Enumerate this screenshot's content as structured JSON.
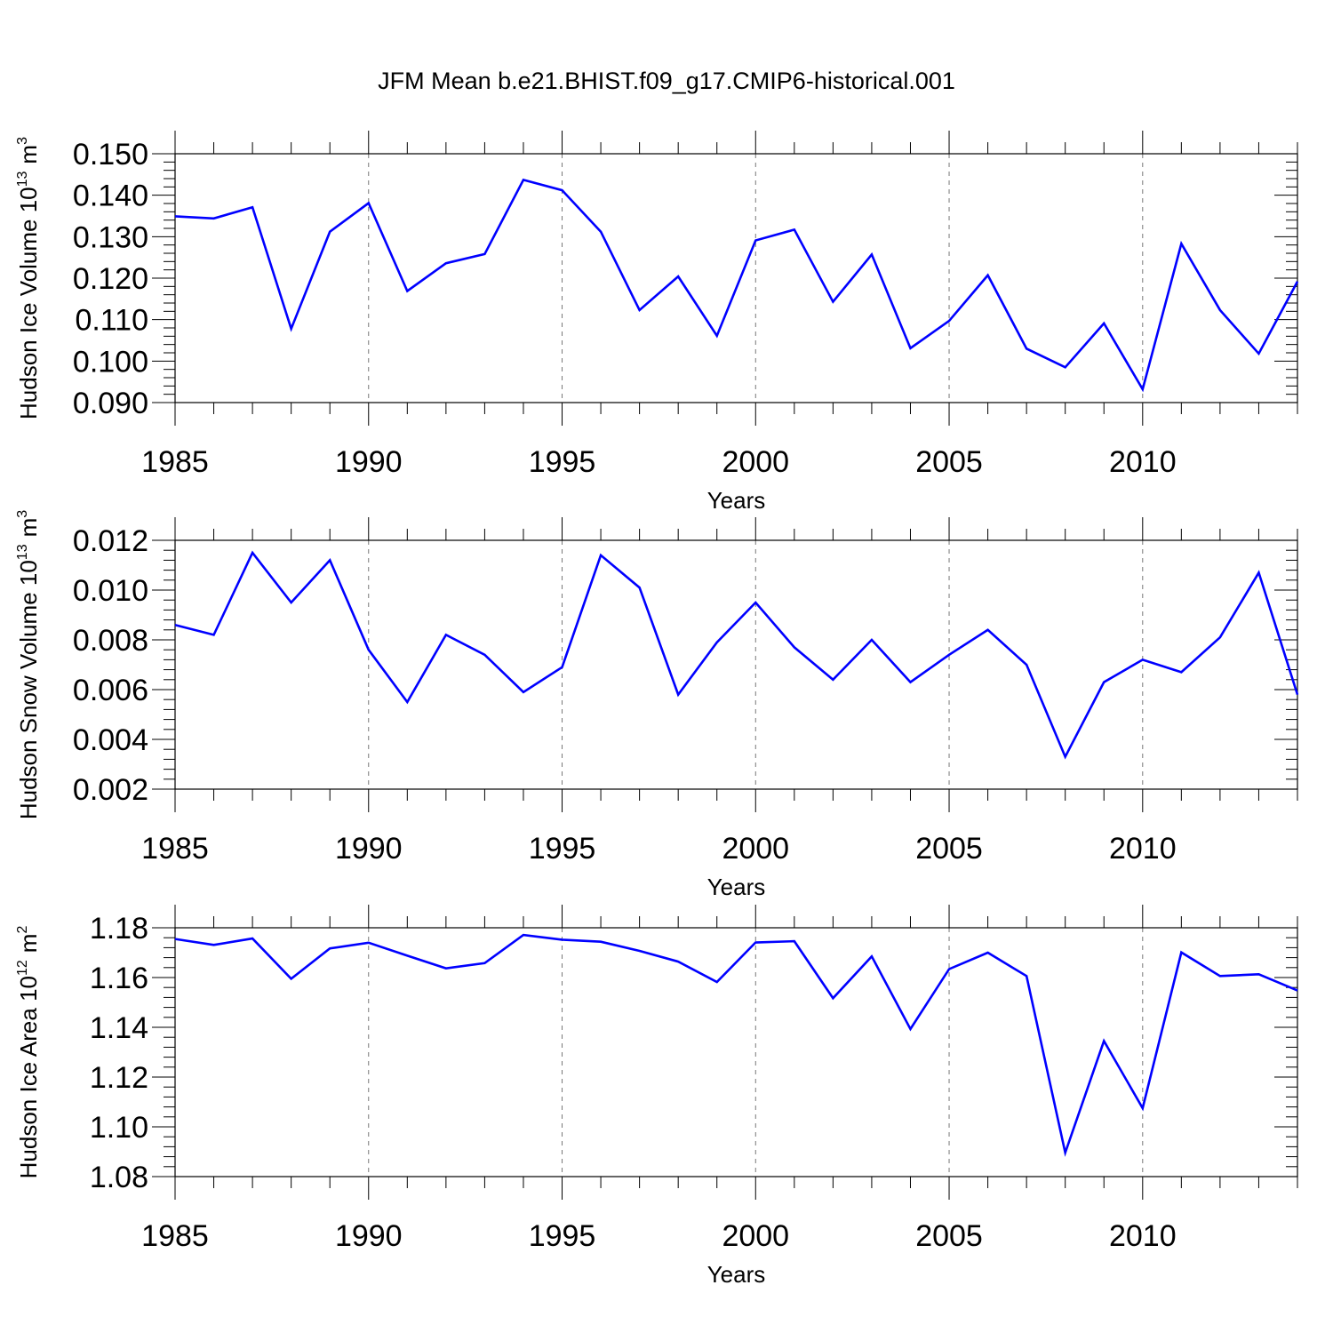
{
  "chart_data": {
    "title": "JFM Mean b.e21.BHIST.f09_g17.CMIP6-historical.001",
    "line_color": "#0000ff",
    "x": [
      1985,
      1986,
      1987,
      1988,
      1989,
      1990,
      1991,
      1992,
      1993,
      1994,
      1995,
      1996,
      1997,
      1998,
      1999,
      2000,
      2001,
      2002,
      2003,
      2004,
      2005,
      2006,
      2007,
      2008,
      2009,
      2010,
      2011,
      2012,
      2013,
      2014
    ],
    "xlim": [
      1985,
      2014
    ],
    "xticks": [
      1985,
      1990,
      1995,
      2000,
      2005,
      2010
    ],
    "xtick_labels": [
      "1985",
      "1990",
      "1995",
      "2000",
      "2005",
      "2010"
    ],
    "panels": [
      {
        "type": "line",
        "ylabel": "Hudson Ice Volume 10",
        "yunit_exponent": "13",
        "yunit": "m",
        "yunit_power": "3",
        "xlabel": "Years",
        "ylim": [
          0.09,
          0.15
        ],
        "yticks": [
          0.09,
          0.1,
          0.11,
          0.12,
          0.13,
          0.14,
          0.15
        ],
        "ytick_labels": [
          "0.090",
          "0.100",
          "0.110",
          "0.120",
          "0.130",
          "0.140",
          "0.150"
        ],
        "values": [
          0.1349,
          0.1344,
          0.1371,
          0.1078,
          0.1312,
          0.1381,
          0.1169,
          0.1236,
          0.1258,
          0.1437,
          0.1412,
          0.1312,
          0.1123,
          0.1204,
          0.1061,
          0.1291,
          0.1317,
          0.1143,
          0.1257,
          0.1031,
          0.1097,
          0.1207,
          0.103,
          0.0985,
          0.1091,
          0.0932,
          0.1283,
          0.1123,
          0.1018,
          0.1192
        ]
      },
      {
        "type": "line",
        "ylabel": "Hudson Snow Volume 10",
        "yunit_exponent": "13",
        "yunit": "m",
        "yunit_power": "3",
        "xlabel": "Years",
        "ylim": [
          0.002,
          0.012
        ],
        "yticks": [
          0.002,
          0.004,
          0.006,
          0.008,
          0.01,
          0.012
        ],
        "ytick_labels": [
          "0.002",
          "0.004",
          "0.006",
          "0.008",
          "0.010",
          "0.012"
        ],
        "values": [
          0.0086,
          0.0082,
          0.0115,
          0.0095,
          0.0112,
          0.0076,
          0.0055,
          0.0082,
          0.0074,
          0.0059,
          0.0069,
          0.0114,
          0.0101,
          0.0058,
          0.0079,
          0.0095,
          0.0077,
          0.0064,
          0.008,
          0.0063,
          0.0074,
          0.0084,
          0.007,
          0.0033,
          0.0063,
          0.0072,
          0.0067,
          0.0081,
          0.0107,
          0.0058
        ]
      },
      {
        "type": "line",
        "ylabel": "Hudson Ice Area 10",
        "yunit_exponent": "12",
        "yunit": "m",
        "yunit_power": "2",
        "xlabel": "Years",
        "ylim": [
          1.08,
          1.18
        ],
        "yticks": [
          1.08,
          1.1,
          1.12,
          1.14,
          1.16,
          1.18
        ],
        "ytick_labels": [
          "1.08",
          "1.10",
          "1.12",
          "1.14",
          "1.16",
          "1.18"
        ],
        "values": [
          1.1755,
          1.1731,
          1.1757,
          1.1595,
          1.1717,
          1.174,
          1.1688,
          1.1637,
          1.1658,
          1.1771,
          1.1752,
          1.1744,
          1.1707,
          1.1664,
          1.1582,
          1.1741,
          1.1746,
          1.1517,
          1.1685,
          1.1393,
          1.1634,
          1.17,
          1.1606,
          1.0896,
          1.1345,
          1.1075,
          1.1701,
          1.1606,
          1.1613,
          1.1548
        ]
      }
    ]
  }
}
